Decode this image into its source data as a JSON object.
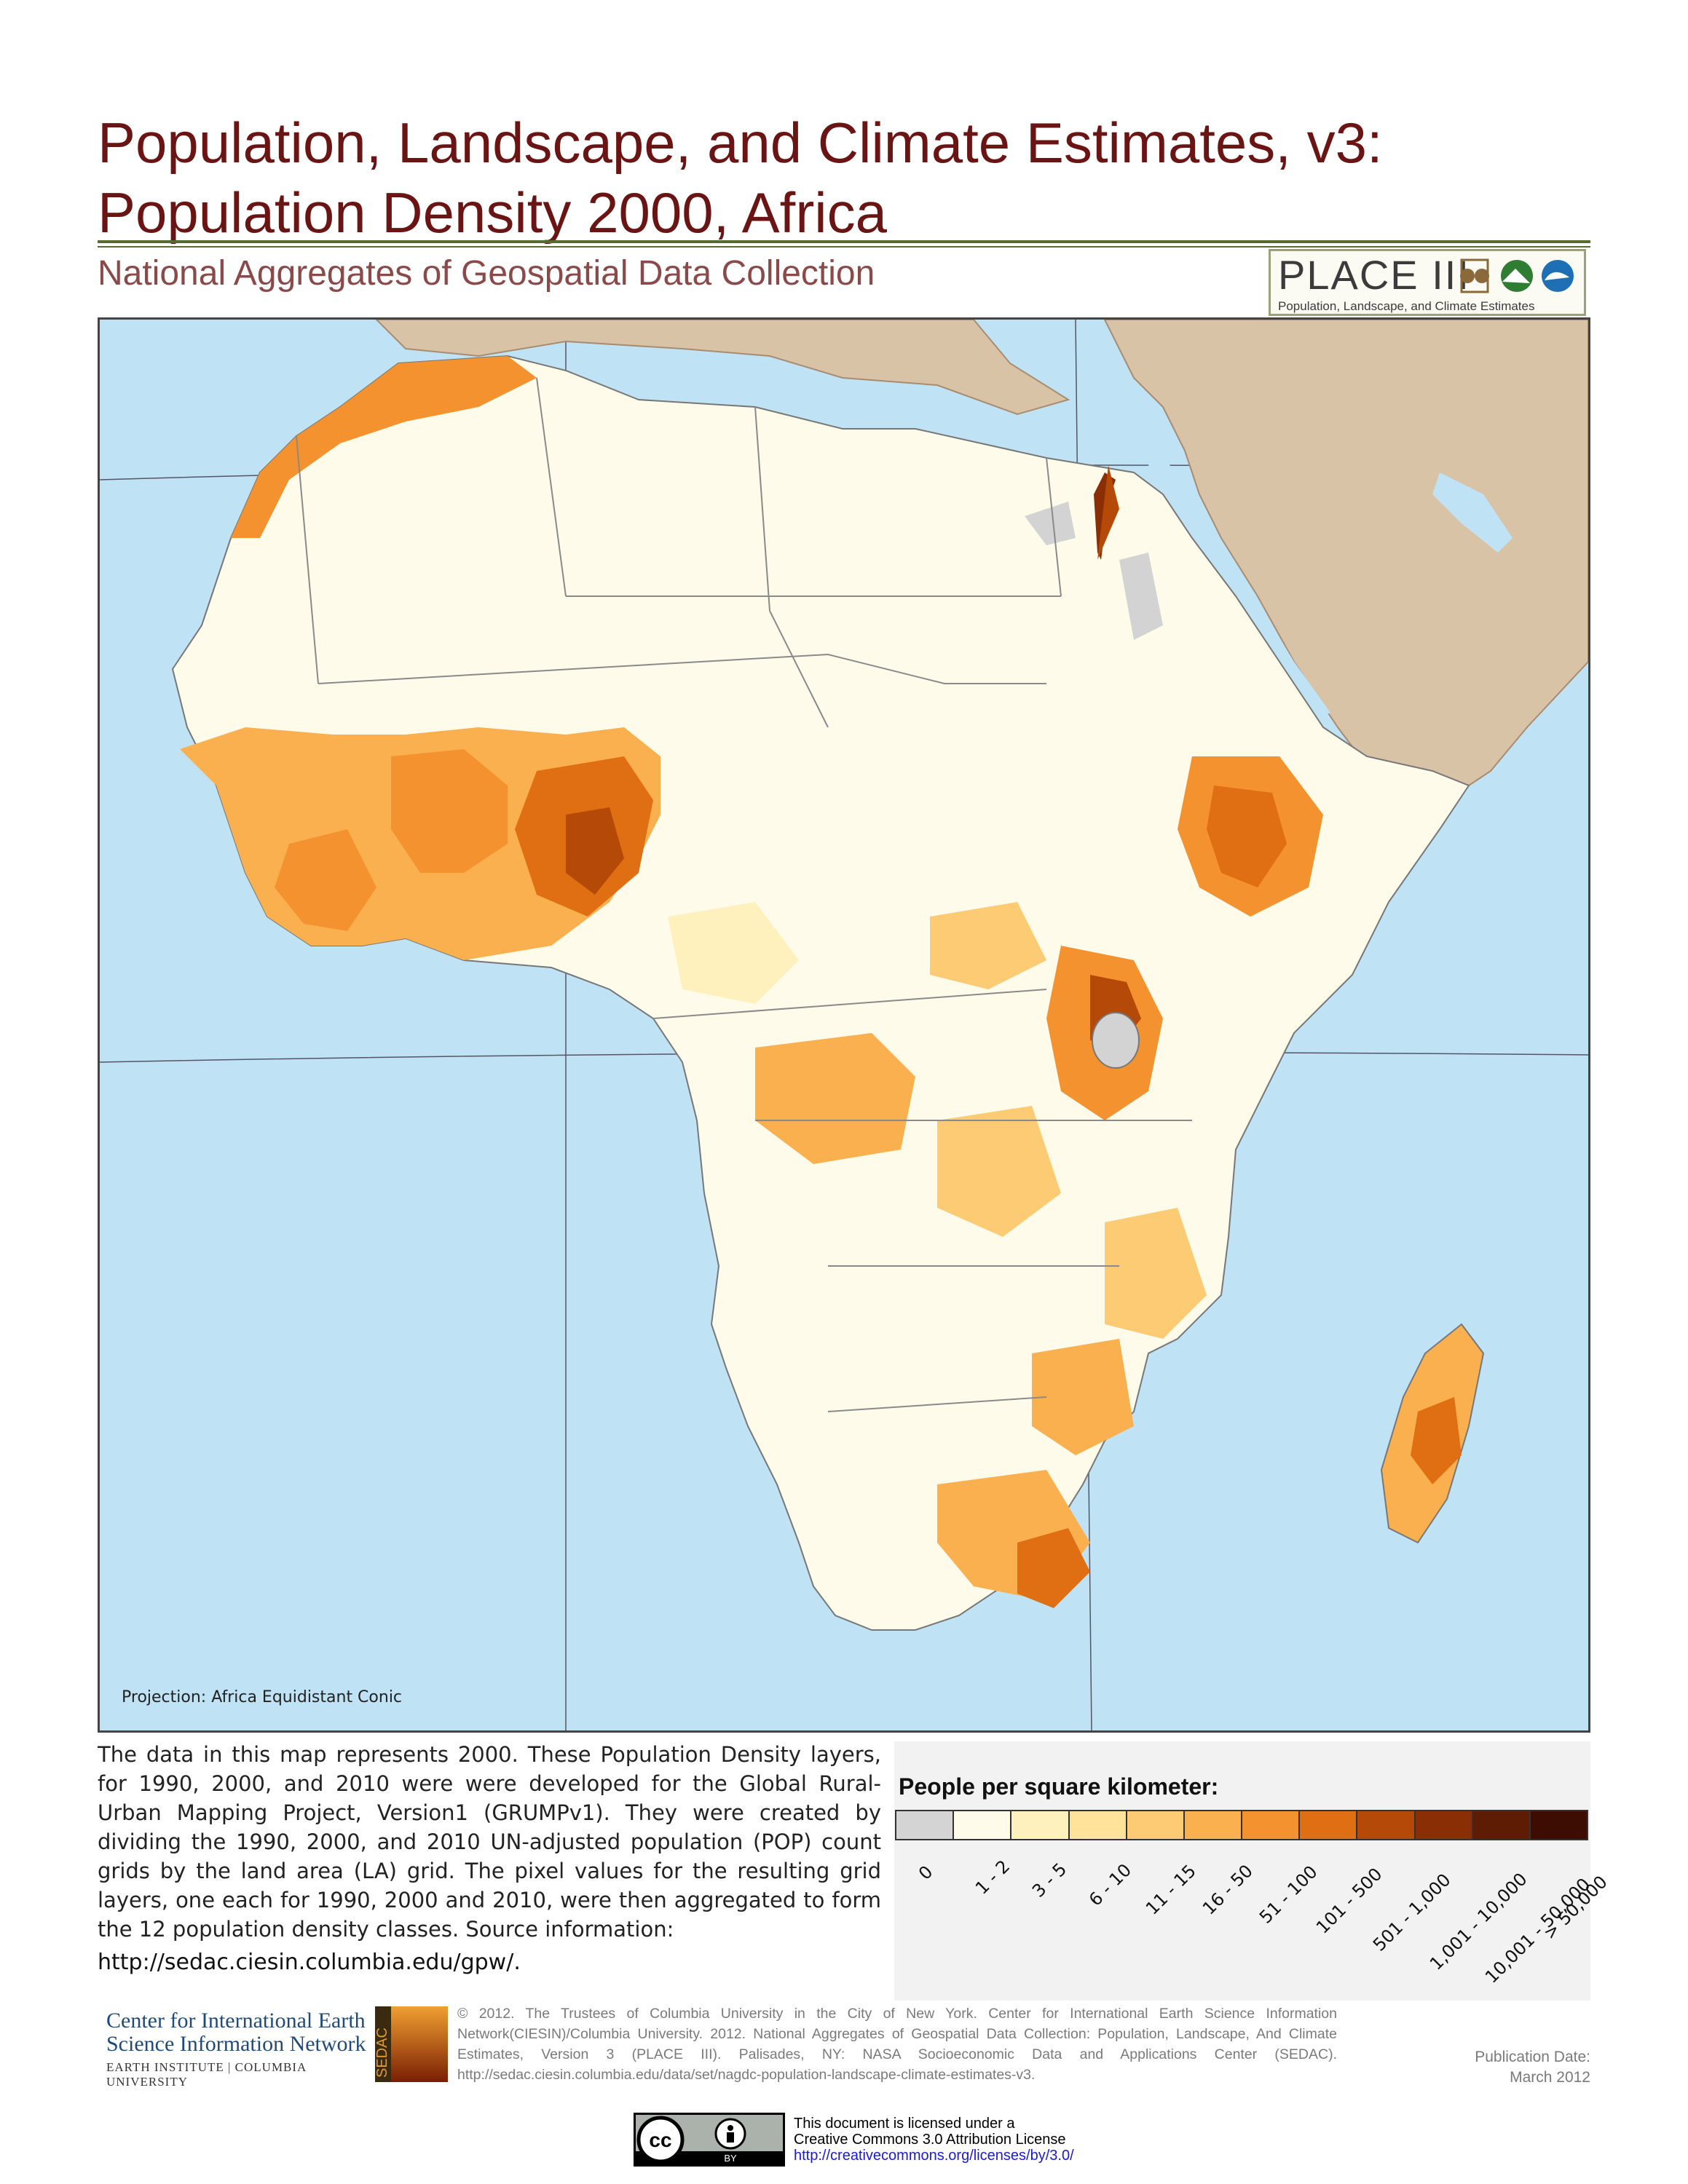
{
  "header": {
    "title_line1": "Population, Landscape, and Climate Estimates, v3:",
    "title_line2": "Population Density 2000, Africa",
    "subtitle": "National Aggregates of Geospatial Data Collection",
    "badge_title": "PLACE III",
    "badge_subtitle": "Population, Landscape, and Climate Estimates"
  },
  "map": {
    "projection_note": "Projection: Africa Equidistant Conic",
    "colors": {
      "water": "#bfe3f5",
      "land_outside": "#d9c3a7",
      "no_data": "#d3d3d3"
    }
  },
  "description": {
    "text": "The data in this map represents 2000.  These Population Density layers, for 1990, 2000, and 2010 were were developed for the Global Rural-Urban Mapping Project, Version1 (GRUMPv1). They were created by dividing the 1990, 2000, and 2010 UN-adjusted population (POP) count grids by the land area (LA) grid. The pixel values for the resulting grid layers, one each for 1990, 2000 and 2010, were then aggregated to form the 12 population density classes.  Source information:",
    "url": "http://sedac.ciesin.columbia.edu/gpw/."
  },
  "legend": {
    "title": "People per square kilometer:",
    "classes": [
      {
        "label": "0",
        "color": "#d4d4d4"
      },
      {
        "label": "1 - 2",
        "color": "#fffbeb"
      },
      {
        "label": "3 - 5",
        "color": "#fff1bd"
      },
      {
        "label": "6 - 10",
        "color": "#ffe39b"
      },
      {
        "label": "11 - 15",
        "color": "#fdcb73"
      },
      {
        "label": "16 - 50",
        "color": "#fbb04f"
      },
      {
        "label": "51 - 100",
        "color": "#f3922f"
      },
      {
        "label": "101 - 500",
        "color": "#e06e12"
      },
      {
        "label": "501 - 1,000",
        "color": "#b54a08"
      },
      {
        "label": "1,001 - 10,000",
        "color": "#8a2e06"
      },
      {
        "label": "10,001 - 50,000",
        "color": "#5e1c05"
      },
      {
        "label": "> 50,000",
        "color": "#3d0c02"
      }
    ]
  },
  "footer": {
    "org_line1": "Center for International Earth",
    "org_line2": "Science Information Network",
    "org_line3": "EARTH INSTITUTE | COLUMBIA UNIVERSITY",
    "sedac_label": "SEDAC",
    "copyright": "© 2012. The Trustees of Columbia University in the City of New York.  Center for International Earth Science Information Network(CIESIN)/Columbia University. 2012. National Aggregates of Geospatial Data Collection: Population, Landscape, And Climate Estimates, Version 3 (PLACE III). Palisades, NY: NASA Socioeconomic Data and Applications Center (SEDAC). http://sedac.ciesin.columbia.edu/data/set/nagdc-population-landscape-climate-estimates-v3.",
    "pub_label": "Publication Date:",
    "pub_date": "March 2012",
    "license_line1": "This document is licensed under a",
    "license_line2": "Creative Commons 3.0 Attribution License",
    "license_url": "http://creativecommons.org/licenses/by/3.0/",
    "cc_by": "BY"
  }
}
